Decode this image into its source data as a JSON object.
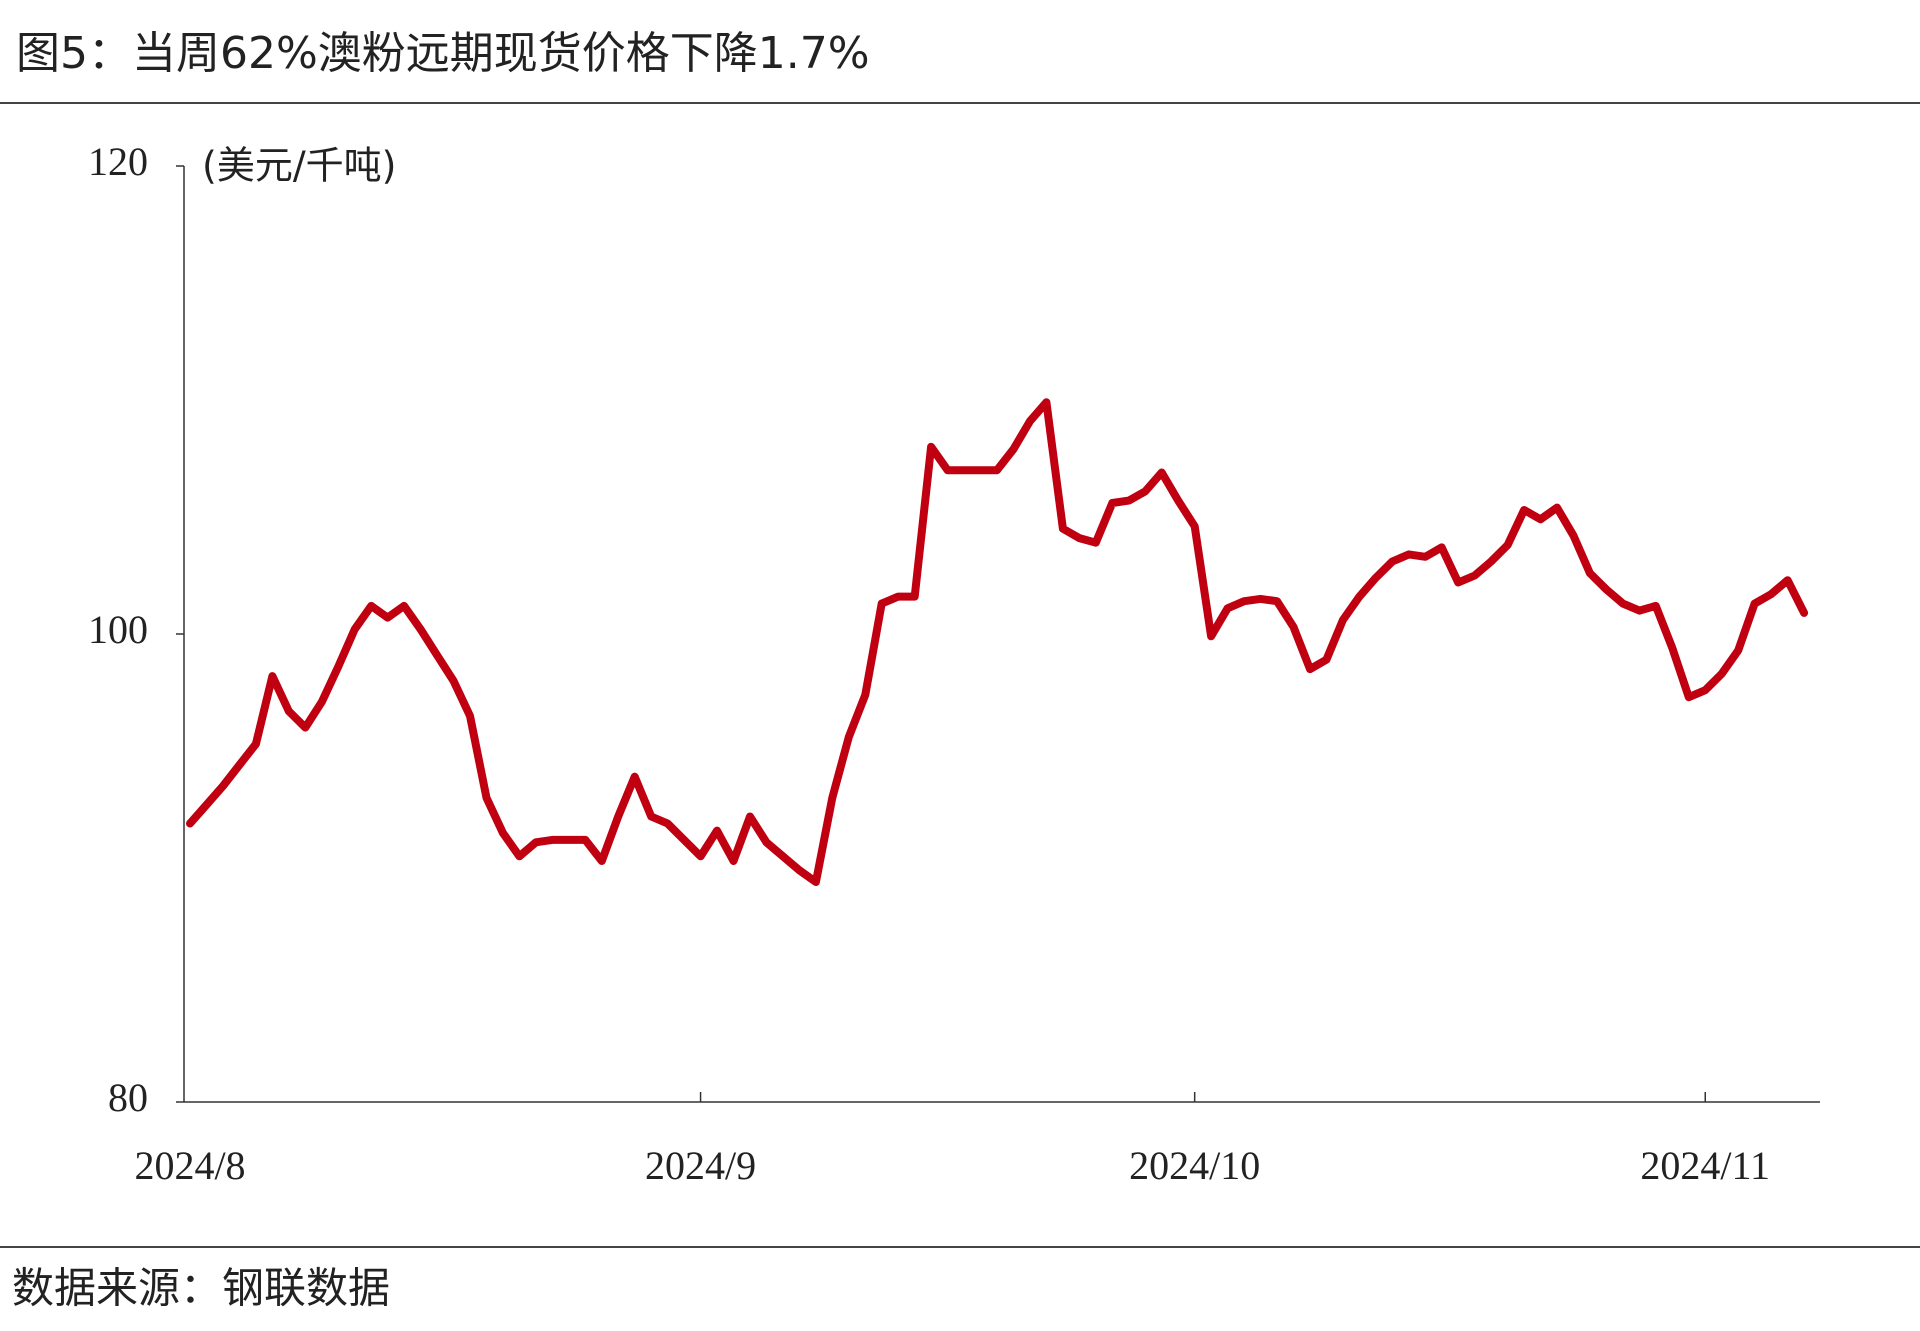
{
  "chart_data": {
    "type": "line",
    "title": "图5：当周62%澳粉远期现货价格下降1.7%",
    "y_label": "(美元/千吨)",
    "source": "数据来源：钢联数据",
    "categories": [
      "2024/8",
      null,
      null,
      null,
      null,
      null,
      null,
      null,
      null,
      null,
      null,
      null,
      null,
      null,
      null,
      null,
      null,
      null,
      null,
      null,
      null,
      null,
      null,
      null,
      null,
      null,
      null,
      null,
      null,
      null,
      null,
      "2024/9",
      null,
      null,
      null,
      null,
      null,
      null,
      null,
      null,
      null,
      null,
      null,
      null,
      null,
      null,
      null,
      null,
      null,
      null,
      null,
      null,
      null,
      null,
      null,
      null,
      null,
      null,
      null,
      null,
      null,
      "2024/10",
      null,
      null,
      null,
      null,
      null,
      null,
      null,
      null,
      null,
      null,
      null,
      null,
      null,
      null,
      null,
      null,
      null,
      null,
      null,
      null,
      null,
      null,
      null,
      null,
      null,
      null,
      null,
      null,
      null,
      null,
      "2024/11",
      null,
      null,
      null,
      null,
      null,
      null
    ],
    "series": [
      {
        "name": "62%澳粉远期现货价格",
        "color": "#c00010",
        "values": [
          91.9,
          92.7,
          93.5,
          94.4,
          95.3,
          98.2,
          96.7,
          96.0,
          97.1,
          98.6,
          100.2,
          101.2,
          100.7,
          101.2,
          100.2,
          99.1,
          98.0,
          96.5,
          93.0,
          91.5,
          90.5,
          91.1,
          91.2,
          91.2,
          91.2,
          90.3,
          92.2,
          93.9,
          92.2,
          91.9,
          91.2,
          90.5,
          91.6,
          90.3,
          92.2,
          91.1,
          90.5,
          89.9,
          89.4,
          93.0,
          95.6,
          97.4,
          101.3,
          101.6,
          101.6,
          108.0,
          107.0,
          107.0,
          107.0,
          107.0,
          107.9,
          109.1,
          109.9,
          104.5,
          104.1,
          103.9,
          105.6,
          105.7,
          106.1,
          106.9,
          105.7,
          104.6,
          99.9,
          101.1,
          101.4,
          101.5,
          101.4,
          100.3,
          98.5,
          98.9,
          100.6,
          101.6,
          102.4,
          103.1,
          103.4,
          103.3,
          103.7,
          102.2,
          102.5,
          103.1,
          103.8,
          105.3,
          104.9,
          105.4,
          104.2,
          102.6,
          101.9,
          101.3,
          101.0,
          101.2,
          99.4,
          97.3,
          97.6,
          98.3,
          99.3,
          101.3,
          101.7,
          102.3,
          100.9
        ]
      }
    ],
    "ylim": [
      80,
      120
    ],
    "yticks": [
      80,
      100,
      120
    ]
  }
}
